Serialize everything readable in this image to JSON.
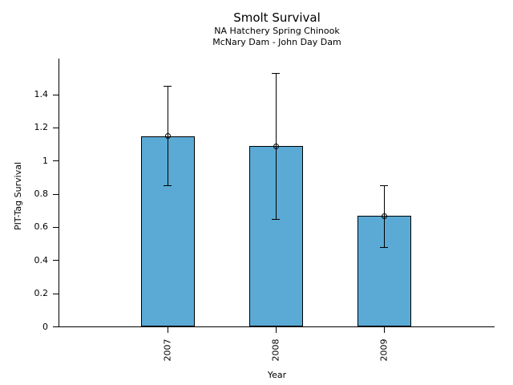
{
  "chart_data": {
    "type": "bar",
    "title": "Smolt Survival",
    "subtitle1": "NA Hatchery Spring Chinook",
    "subtitle2": "McNary Dam - John Day Dam",
    "xlabel": "Year",
    "ylabel": "PIT-Tag Survival",
    "categories": [
      "2007",
      "2008",
      "2009"
    ],
    "values": [
      1.15,
      1.09,
      0.67
    ],
    "error_low": [
      0.85,
      0.65,
      0.48
    ],
    "error_high": [
      1.45,
      1.53,
      0.85
    ],
    "yticks": [
      0,
      0.2,
      0.4,
      0.6,
      0.8,
      1,
      1.2,
      1.4
    ],
    "ytick_labels": [
      "0",
      "0.2",
      "0.4",
      "0.6",
      "0.8",
      "1",
      "1.2",
      "1.4"
    ],
    "ylim": [
      0,
      1.62
    ],
    "grid": false,
    "legend": null,
    "marker": "open-circle",
    "bar_color": "#5AAAD5",
    "bar_edge_color": "#000000",
    "axis_color": "#000000",
    "text_color": "#000000"
  }
}
